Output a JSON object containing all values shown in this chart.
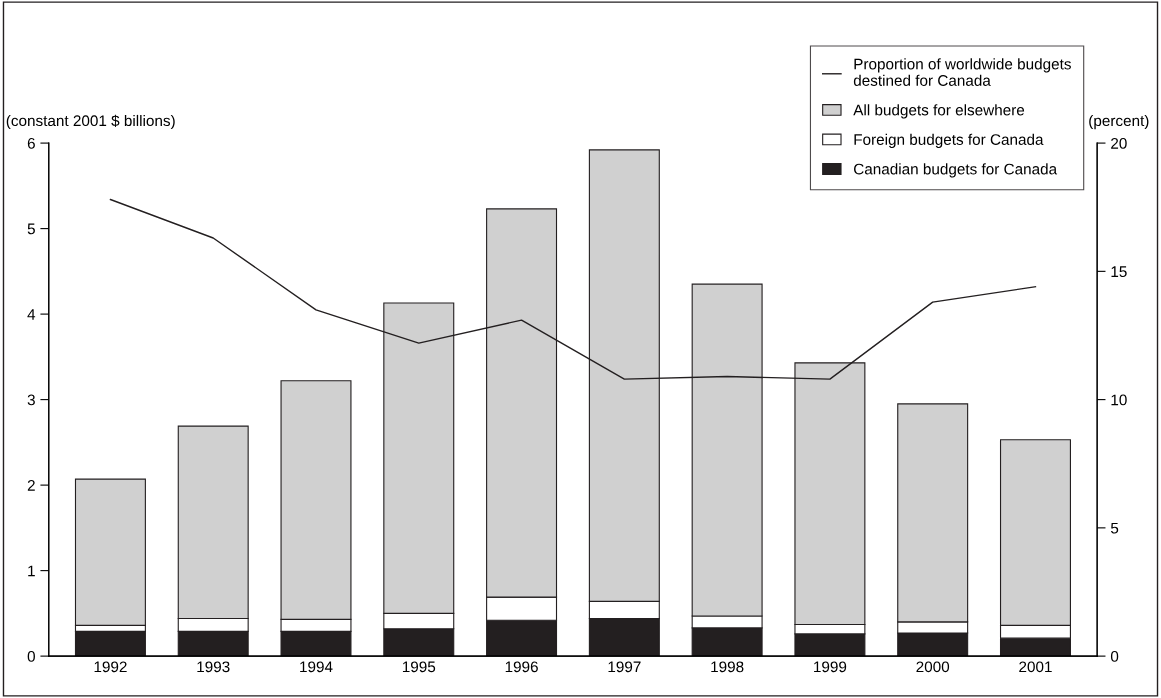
{
  "chart_data": {
    "type": "bar",
    "stacked": true,
    "categories": [
      "1992",
      "1993",
      "1994",
      "1995",
      "1996",
      "1997",
      "1998",
      "1999",
      "2000",
      "2001"
    ],
    "ylabel": "(constant 2001 $ billions)",
    "y2label": "(percent)",
    "ylim": [
      0,
      6
    ],
    "yticks": [
      0,
      1,
      2,
      3,
      4,
      5,
      6
    ],
    "y2lim": [
      0,
      20
    ],
    "y2ticks": [
      0,
      5,
      10,
      15,
      20
    ],
    "legend": "top right",
    "grid": false,
    "series": [
      {
        "name": "Canadian budgets for Canada",
        "color": "#231f20",
        "values": [
          0.29,
          0.29,
          0.29,
          0.32,
          0.42,
          0.44,
          0.33,
          0.26,
          0.27,
          0.21
        ]
      },
      {
        "name": "Foreign budgets for Canada",
        "color": "#ffffff",
        "values": [
          0.07,
          0.15,
          0.14,
          0.18,
          0.27,
          0.2,
          0.14,
          0.11,
          0.13,
          0.15
        ]
      },
      {
        "name": "All budgets for elsewhere",
        "color": "#d0d0d0",
        "values": [
          1.71,
          2.25,
          2.79,
          3.63,
          4.54,
          5.28,
          3.88,
          3.06,
          2.55,
          2.17
        ]
      },
      {
        "name": "Proportion of worldwide budgets\ndestined for Canada",
        "type": "line",
        "axis": "y2",
        "color": "#231f20",
        "values": [
          17.8,
          16.3,
          13.5,
          12.2,
          13.1,
          10.8,
          10.9,
          10.8,
          13.8,
          14.4
        ]
      }
    ]
  }
}
